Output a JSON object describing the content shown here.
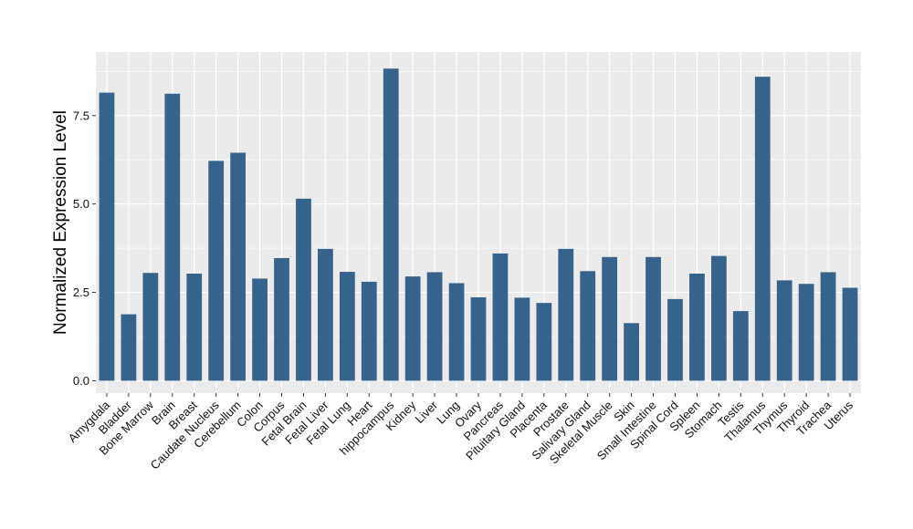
{
  "chart_data": {
    "type": "bar",
    "title": "",
    "xlabel": "",
    "ylabel": "Normalized Expression Level",
    "ylim": [
      -0.35,
      9.3
    ],
    "yticks": [
      0.0,
      2.5,
      5.0,
      7.5
    ],
    "ytick_labels": [
      "0.0",
      "2.5",
      "5.0",
      "7.5"
    ],
    "grid": true,
    "legend": "none",
    "colors": {
      "bar": "#35638b",
      "panel": "#ebebeb",
      "grid": "#ffffff"
    },
    "categories": [
      "Amygdala",
      "Bladder",
      "Bone Marrow",
      "Brain",
      "Breast",
      "Caudate Nucleus",
      "Cerebellum",
      "Colon",
      "Corpus",
      "Fetal Brain",
      "Fetal Liver",
      "Fetal Lung",
      "Heart",
      "hippocampus",
      "Kidney",
      "Liver",
      "Lung",
      "Ovary",
      "Pancreas",
      "Pituitary Gland",
      "Placenta",
      "Prostate",
      "Salivary Gland",
      "Skeletal Muscle",
      "Skin",
      "Small Intestine",
      "Spinal Cord",
      "Spleen",
      "Stomach",
      "Testis",
      "Thalamus",
      "Thymus",
      "Thyroid",
      "Trachea",
      "Uterus"
    ],
    "values": [
      8.15,
      1.88,
      3.05,
      8.12,
      3.03,
      6.22,
      6.45,
      2.89,
      3.47,
      5.15,
      3.73,
      3.08,
      2.8,
      8.83,
      2.95,
      3.07,
      2.76,
      2.36,
      3.6,
      2.35,
      2.2,
      3.73,
      3.1,
      3.5,
      1.63,
      3.5,
      2.31,
      3.03,
      3.53,
      1.97,
      8.6,
      2.84,
      2.74,
      3.07,
      2.63
    ]
  }
}
